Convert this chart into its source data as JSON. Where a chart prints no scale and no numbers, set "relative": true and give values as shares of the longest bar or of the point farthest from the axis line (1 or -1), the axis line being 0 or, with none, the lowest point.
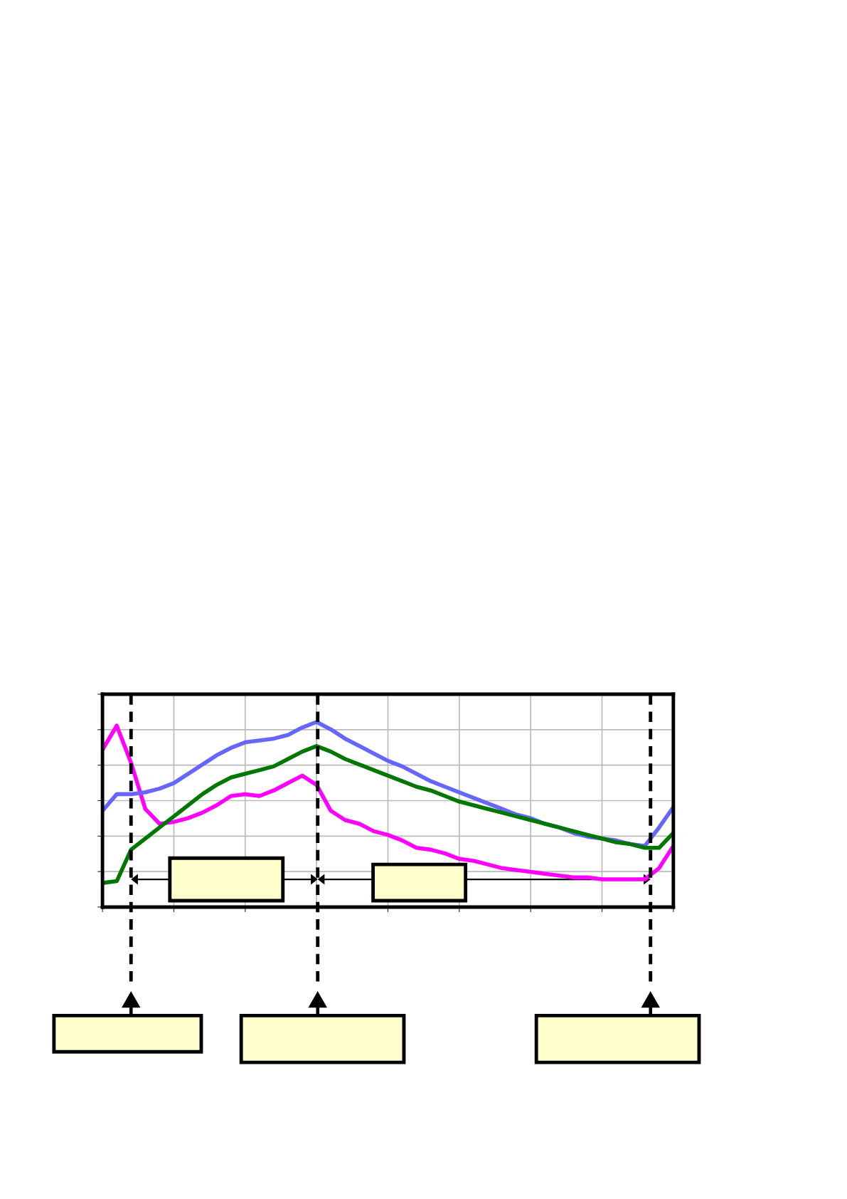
{
  "chart_data": {
    "type": "line",
    "relative": true,
    "grid": true,
    "tick_labels": false,
    "legend": false,
    "categories": [
      null,
      null,
      null,
      null,
      null,
      null,
      null,
      null,
      null,
      null,
      null,
      null,
      null,
      null,
      null,
      null,
      null,
      null,
      null,
      null,
      null,
      null,
      null,
      null,
      null,
      null,
      null,
      null,
      null,
      null,
      null,
      null,
      null,
      null,
      null,
      null,
      null,
      null,
      null,
      null,
      null
    ],
    "series": [
      {
        "color": "#ff00ff",
        "values": [
          0.85,
          0.98,
          0.78,
          0.53,
          0.45,
          0.46,
          0.48,
          0.51,
          0.55,
          0.6,
          0.61,
          0.6,
          0.63,
          0.67,
          0.71,
          0.66,
          0.52,
          0.47,
          0.45,
          0.41,
          0.39,
          0.36,
          0.32,
          0.31,
          0.29,
          0.26,
          0.25,
          0.23,
          0.21,
          0.2,
          0.19,
          0.18,
          0.17,
          0.16,
          0.16,
          0.15,
          0.15,
          0.15,
          0.15,
          0.21,
          0.33
        ]
      },
      {
        "color": "#6666ff",
        "values": [
          0.52,
          0.61,
          0.61,
          0.62,
          0.64,
          0.67,
          0.72,
          0.77,
          0.82,
          0.86,
          0.89,
          0.9,
          0.91,
          0.93,
          0.97,
          1.0,
          0.96,
          0.91,
          0.87,
          0.83,
          0.79,
          0.76,
          0.72,
          0.68,
          0.65,
          0.62,
          0.59,
          0.56,
          0.53,
          0.5,
          0.48,
          0.45,
          0.43,
          0.4,
          0.38,
          0.37,
          0.36,
          0.34,
          0.33,
          0.43,
          0.54
        ]
      },
      {
        "color": "#007700",
        "values": [
          0.13,
          0.14,
          0.31,
          0.37,
          0.43,
          0.49,
          0.55,
          0.61,
          0.66,
          0.7,
          0.72,
          0.74,
          0.76,
          0.8,
          0.84,
          0.87,
          0.84,
          0.8,
          0.77,
          0.74,
          0.71,
          0.68,
          0.65,
          0.63,
          0.6,
          0.57,
          0.55,
          0.53,
          0.51,
          0.49,
          0.47,
          0.45,
          0.43,
          0.41,
          0.39,
          0.37,
          0.35,
          0.34,
          0.32,
          0.32,
          0.4
        ]
      }
    ]
  }
}
